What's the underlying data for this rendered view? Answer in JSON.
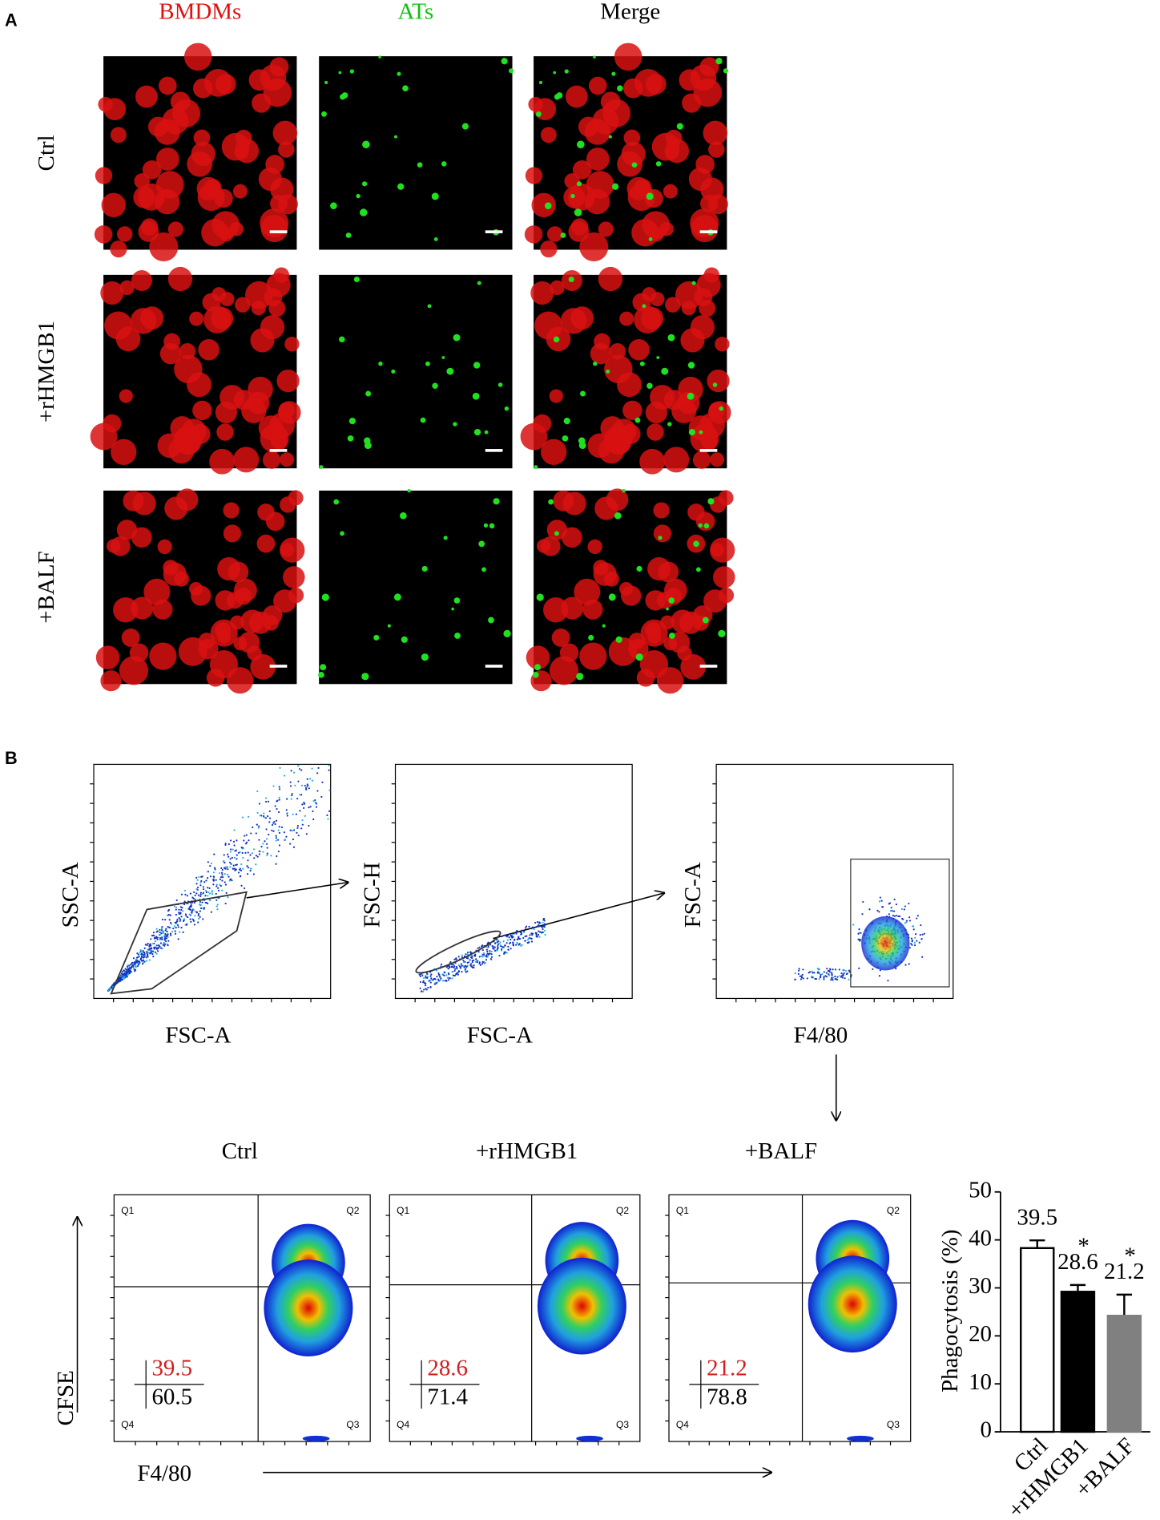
{
  "panel_a": {
    "label": "A",
    "columns": [
      "BMDMs",
      "ATs",
      "Merge"
    ],
    "rows": [
      "Ctrl",
      "+rHMGB1",
      "+BALF"
    ]
  },
  "panel_b": {
    "label": "B",
    "gating": [
      {
        "x_label": "FSC-A",
        "y_label": "SSC-A"
      },
      {
        "x_label": "FSC-A",
        "y_label": "FSC-H"
      },
      {
        "x_label": "F4/80",
        "y_label": "FSC-A"
      }
    ],
    "groups": [
      {
        "title": "Ctrl",
        "top": "39.5",
        "bottom": "60.5"
      },
      {
        "title": "+rHMGB1",
        "top": "28.6",
        "bottom": "71.4"
      },
      {
        "title": "+BALF",
        "top": "21.2",
        "bottom": "78.8"
      }
    ],
    "quadrants": [
      "Q1",
      "Q2",
      "Q3",
      "Q4"
    ],
    "y_label": "CFSE",
    "x_label": "F4/80"
  },
  "chart_data": {
    "type": "bar",
    "y_label": "Phagocytosis (%)",
    "categories": [
      "Ctrl",
      "+rHMGB1",
      "+BALF"
    ],
    "values": [
      38.3,
      29.2,
      24.2
    ],
    "errors": [
      1.6,
      1.4,
      4.4
    ],
    "colors": [
      "#ffffff",
      "#000000",
      "#808080"
    ],
    "annotations": [
      "39.5",
      "28.6",
      "21.2"
    ],
    "significance": [
      null,
      "*",
      "*"
    ],
    "ylim": [
      0,
      50
    ],
    "yticks": [
      0,
      10,
      20,
      30,
      40,
      50
    ]
  }
}
